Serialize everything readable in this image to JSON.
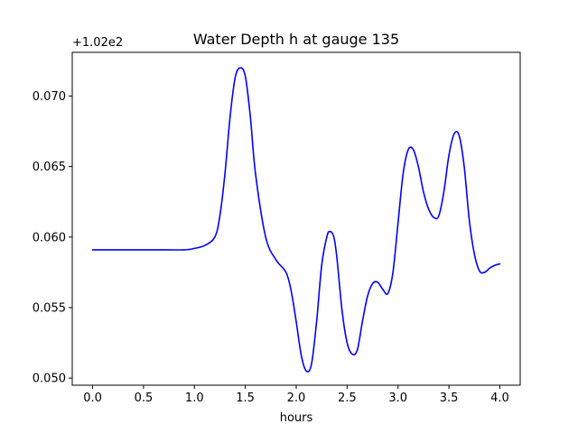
{
  "chart_data": {
    "type": "line",
    "title": "Water Depth h at gauge 135",
    "xlabel": "hours",
    "ylabel": "",
    "y_offset_label": "+1.02e2",
    "xlim": [
      -0.2,
      4.2
    ],
    "ylim": [
      0.0495,
      0.0731
    ],
    "x_ticks": [
      0.0,
      0.5,
      1.0,
      1.5,
      2.0,
      2.5,
      3.0,
      3.5,
      4.0
    ],
    "x_tick_labels": [
      "0.0",
      "0.5",
      "1.0",
      "1.5",
      "2.0",
      "2.5",
      "3.0",
      "3.5",
      "4.0"
    ],
    "y_ticks": [
      0.05,
      0.055,
      0.06,
      0.065,
      0.07
    ],
    "y_tick_labels": [
      "0.050",
      "0.055",
      "0.060",
      "0.065",
      "0.070"
    ],
    "grid": false,
    "legend": "none",
    "series": [
      {
        "color": "#0000ff",
        "x": [
          0.0,
          0.3,
          0.6,
          0.9,
          1.0,
          1.1,
          1.2,
          1.25,
          1.3,
          1.35,
          1.4,
          1.45,
          1.5,
          1.55,
          1.6,
          1.7,
          1.8,
          1.9,
          1.95,
          2.0,
          2.05,
          2.1,
          2.15,
          2.2,
          2.25,
          2.3,
          2.33,
          2.37,
          2.4,
          2.45,
          2.5,
          2.55,
          2.6,
          2.65,
          2.7,
          2.75,
          2.8,
          2.85,
          2.9,
          2.95,
          3.0,
          3.05,
          3.1,
          3.15,
          3.2,
          3.25,
          3.3,
          3.35,
          3.4,
          3.45,
          3.5,
          3.55,
          3.6,
          3.65,
          3.7,
          3.75,
          3.8,
          3.85,
          3.9,
          3.95,
          4.0
        ],
        "y": [
          0.0591,
          0.0591,
          0.0591,
          0.0591,
          0.0592,
          0.0594,
          0.06,
          0.0615,
          0.0645,
          0.0685,
          0.0713,
          0.072,
          0.0714,
          0.0685,
          0.0645,
          0.06,
          0.0584,
          0.0575,
          0.0562,
          0.054,
          0.0516,
          0.0505,
          0.051,
          0.054,
          0.058,
          0.06,
          0.0604,
          0.06,
          0.0585,
          0.0548,
          0.0525,
          0.0517,
          0.052,
          0.054,
          0.0558,
          0.0567,
          0.0568,
          0.0563,
          0.056,
          0.0575,
          0.061,
          0.0645,
          0.0662,
          0.0662,
          0.065,
          0.0632,
          0.062,
          0.0614,
          0.0615,
          0.0632,
          0.0658,
          0.0673,
          0.0672,
          0.065,
          0.0612,
          0.0588,
          0.0576,
          0.0575,
          0.0578,
          0.058,
          0.0581
        ]
      }
    ]
  }
}
